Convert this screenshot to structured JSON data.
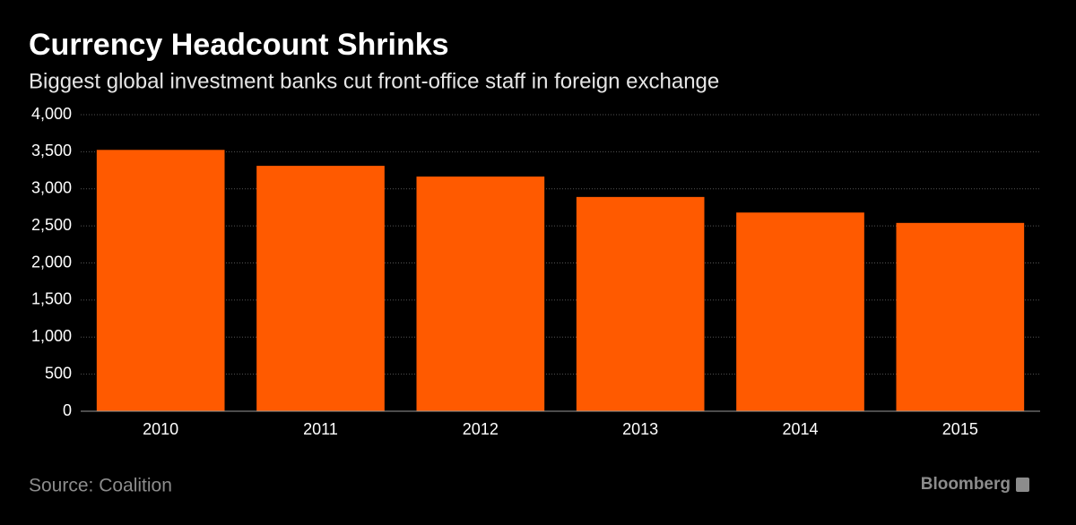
{
  "chart_data": {
    "type": "bar",
    "title": "Currency Headcount Shrinks",
    "subtitle": "Biggest global investment banks cut front-office staff in foreign exchange",
    "categories": [
      "2010",
      "2011",
      "2012",
      "2013",
      "2014",
      "2015"
    ],
    "values": [
      3525,
      3310,
      3165,
      2890,
      2680,
      2540
    ],
    "color": "#ff5a00",
    "ylim": [
      0,
      4000
    ],
    "yticks": [
      0,
      500,
      {
        "value": 1000,
        "label": "1,000"
      },
      {
        "value": 1500,
        "label": "1,500"
      },
      {
        "value": 2000,
        "label": "2,000"
      },
      {
        "value": 2500,
        "label": "2,500"
      },
      {
        "value": 3000,
        "label": "3,000"
      },
      {
        "value": 3500,
        "label": "3,500"
      },
      {
        "value": 4000,
        "label": "4,000"
      }
    ],
    "grid": true,
    "source": "Source: Coalition",
    "brand": "Bloomberg"
  }
}
